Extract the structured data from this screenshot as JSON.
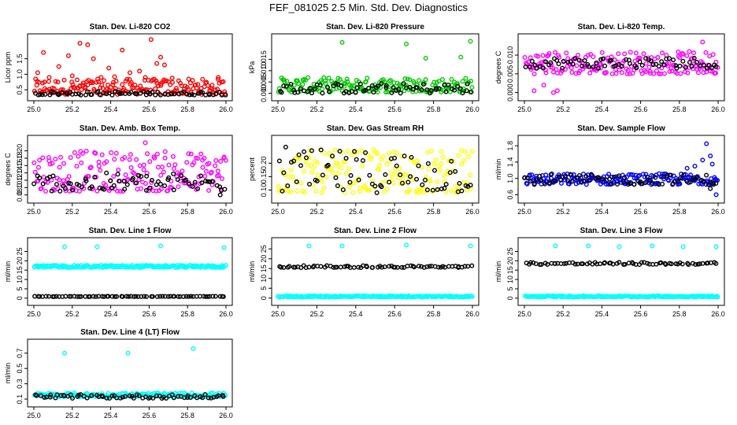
{
  "figure_title": "FEF_081025  2.5 Min. Std. Dev. Diagnostics",
  "colors": {
    "black": "#000000",
    "red": "#ff0000",
    "green": "#00cc00",
    "magenta": "#ff00ff",
    "yellow": "#ffff00",
    "blue": "#0000ff",
    "cyan": "#00ffff"
  },
  "chart_data": [
    {
      "type": "scatter",
      "title": "Stan. Dev. Li-820 CO2",
      "ylabel": "Licor ppm",
      "xlim": [
        25.0,
        26.0
      ],
      "xticks": [
        "25.0",
        "25.2",
        "25.4",
        "25.6",
        "25.8",
        "26.0"
      ],
      "ylim": [
        0.35,
        2.1
      ],
      "yticks": [
        "0.5",
        "1.0",
        "1.5"
      ],
      "series": [
        {
          "name": "red",
          "color": "#ff0000",
          "band": [
            0.35,
            0.85
          ],
          "spikes": [
            [
              25.02,
              1.05
            ],
            [
              25.05,
              1.7
            ],
            [
              25.08,
              0.9
            ],
            [
              25.13,
              1.25
            ],
            [
              25.18,
              1.6
            ],
            [
              25.2,
              0.95
            ],
            [
              25.24,
              2.0
            ],
            [
              25.28,
              1.95
            ],
            [
              25.31,
              1.5
            ],
            [
              25.35,
              0.9
            ],
            [
              25.39,
              1.2
            ],
            [
              25.42,
              0.92
            ],
            [
              25.46,
              1.78
            ],
            [
              25.5,
              1.05
            ],
            [
              25.55,
              1.1
            ],
            [
              25.58,
              0.9
            ],
            [
              25.61,
              2.12
            ],
            [
              25.64,
              1.35
            ],
            [
              25.66,
              1.55
            ],
            [
              25.68,
              1.3
            ],
            [
              25.72,
              0.88
            ],
            [
              25.96,
              0.9
            ]
          ]
        },
        {
          "name": "black",
          "color": "#000000",
          "band": [
            0.33,
            0.45
          ],
          "spikes": []
        }
      ]
    },
    {
      "type": "scatter",
      "title": "Stan. Dev. Li-820 Pressure",
      "ylabel": "kPa",
      "xlim": [
        25.0,
        26.0
      ],
      "xticks": [
        "25.0",
        "25.2",
        "25.4",
        "25.6",
        "25.8",
        "26.0"
      ],
      "ylim": [
        -0.0005,
        0.0235
      ],
      "yticks": [
        "0.000",
        "0.005",
        "0.010",
        "0.015"
      ],
      "series": [
        {
          "name": "green",
          "color": "#00cc00",
          "band": [
            0.0005,
            0.007
          ],
          "spikes": [
            [
              25.33,
              0.0225
            ],
            [
              25.66,
              0.0218
            ],
            [
              25.76,
              0.0155
            ],
            [
              25.94,
              0.016
            ],
            [
              25.99,
              0.023
            ]
          ]
        },
        {
          "name": "black",
          "color": "#000000",
          "band": [
            0.0,
            0.0045
          ],
          "spikes": []
        }
      ]
    },
    {
      "type": "scatter",
      "title": "Stan. Dev. Li-820 Temp.",
      "ylabel": "degrees C",
      "xlim": [
        25.0,
        26.0
      ],
      "xticks": [
        "25.0",
        "25.2",
        "25.4",
        "25.6",
        "25.8",
        "26.0"
      ],
      "ylim": [
        -0.0005,
        0.014
      ],
      "yticks": [
        "0.000",
        "0.005",
        "0.010"
      ],
      "series": [
        {
          "name": "magenta",
          "color": "#ff00ff",
          "band": [
            0.005,
            0.011
          ],
          "spikes": [
            [
              25.05,
              0.0005
            ],
            [
              25.1,
              0.002
            ],
            [
              25.15,
              0.0
            ],
            [
              25.17,
              0.0005
            ],
            [
              25.92,
              0.0135
            ]
          ]
        },
        {
          "name": "black",
          "color": "#000000",
          "band": [
            0.0065,
            0.0095
          ],
          "spikes": []
        }
      ]
    },
    {
      "type": "scatter",
      "title": "Stan. Dev. Amb. Box Temp.",
      "ylabel": "degrees C",
      "xlim": [
        25.0,
        26.0
      ],
      "xticks": [
        "25.0",
        "25.2",
        "25.4",
        "25.6",
        "25.8",
        "26.0"
      ],
      "ylim": [
        0.075,
        0.225
      ],
      "yticks": [
        "0.08",
        "0.10",
        "0.12",
        "0.14",
        "0.16",
        "0.18",
        "0.20"
      ],
      "series": [
        {
          "name": "magenta",
          "color": "#ff00ff",
          "band": [
            0.09,
            0.2
          ],
          "spikes": [
            [
              25.58,
              0.222
            ]
          ]
        },
        {
          "name": "black",
          "color": "#000000",
          "band": [
            0.09,
            0.14
          ],
          "spikes": [
            [
              25.97,
              0.08
            ]
          ]
        }
      ]
    },
    {
      "type": "scatter",
      "title": "Stan. Dev. Gas Stream RH",
      "ylabel": "percent",
      "xlim": [
        25.0,
        26.0
      ],
      "xticks": [
        "25.0",
        "25.2",
        "25.4",
        "25.6",
        "25.8",
        "26.0"
      ],
      "ylim": [
        0.075,
        0.28
      ],
      "yticks": [
        "0.10",
        "0.15",
        "0.20"
      ],
      "series": [
        {
          "name": "yellow",
          "color": "#ffff00",
          "band": [
            0.09,
            0.25
          ],
          "spikes": []
        },
        {
          "name": "black",
          "color": "#000000",
          "band": [
            0.09,
            0.25
          ],
          "spikes": [
            [
              25.04,
              0.26
            ]
          ]
        }
      ]
    },
    {
      "type": "scatter",
      "title": "Stan. Dev. Sample Flow",
      "ylabel": "ml/min",
      "xlim": [
        25.0,
        26.0
      ],
      "xticks": [
        "25.0",
        "25.2",
        "25.4",
        "25.6",
        "25.8",
        "26.0"
      ],
      "ylim": [
        0.55,
        1.9
      ],
      "yticks": [
        "0.6",
        "1.0",
        "1.4",
        "1.8"
      ],
      "series": [
        {
          "name": "blue",
          "color": "#0000ff",
          "band": [
            0.85,
            1.12
          ],
          "spikes": [
            [
              25.84,
              1.25
            ],
            [
              25.88,
              1.3
            ],
            [
              25.92,
              1.45
            ],
            [
              25.94,
              1.85
            ],
            [
              25.96,
              1.55
            ],
            [
              25.97,
              1.35
            ],
            [
              25.99,
              0.6
            ]
          ]
        },
        {
          "name": "black",
          "color": "#000000",
          "band": [
            0.85,
            1.1
          ],
          "spikes": [
            [
              25.96,
              0.75
            ]
          ]
        }
      ]
    },
    {
      "type": "scatter",
      "title": "Stan. Dev. Line 1 Flow",
      "ylabel": "ml/min",
      "xlim": [
        25.0,
        26.0
      ],
      "xticks": [
        "25.0",
        "25.2",
        "25.4",
        "25.6",
        "25.8",
        "26.0"
      ],
      "ylim": [
        -0.5,
        29
      ],
      "yticks": [
        "0",
        "5",
        "10",
        "15",
        "20",
        "25"
      ],
      "series": [
        {
          "name": "cyan",
          "color": "#00ffff",
          "band": [
            16.4,
            17.6
          ],
          "spikes": [
            [
              25.16,
              27.5
            ],
            [
              25.33,
              27.5
            ],
            [
              25.66,
              28.0
            ],
            [
              25.99,
              27.0
            ]
          ]
        },
        {
          "name": "black",
          "color": "#000000",
          "band": [
            0.8,
            1.0
          ],
          "spikes": []
        }
      ]
    },
    {
      "type": "scatter",
      "title": "Stan. Dev. Line 2 Flow",
      "ylabel": "ml/min",
      "xlim": [
        25.0,
        26.0
      ],
      "xticks": [
        "25.0",
        "25.2",
        "25.4",
        "25.6",
        "25.8",
        "26.0"
      ],
      "ylim": [
        -0.5,
        27.5
      ],
      "yticks": [
        "0",
        "5",
        "10",
        "15",
        "20",
        "25"
      ],
      "series": [
        {
          "name": "cyan",
          "color": "#00ffff",
          "band": [
            0.5,
            1.2
          ],
          "spikes": [
            [
              25.16,
              26.5
            ],
            [
              25.33,
              26.5
            ],
            [
              25.66,
              27.0
            ],
            [
              25.99,
              26.5
            ]
          ]
        },
        {
          "name": "black",
          "color": "#000000",
          "band": [
            15.5,
            16.5
          ],
          "spikes": []
        }
      ]
    },
    {
      "type": "scatter",
      "title": "Stan. Dev. Line 3 Flow",
      "ylabel": "ml/min",
      "xlim": [
        25.0,
        26.0
      ],
      "xticks": [
        "25.0",
        "25.2",
        "25.4",
        "25.6",
        "25.8",
        "26.0"
      ],
      "ylim": [
        -0.5,
        29
      ],
      "yticks": [
        "0",
        "5",
        "10",
        "15",
        "20",
        "25"
      ],
      "series": [
        {
          "name": "cyan",
          "color": "#00ffff",
          "band": [
            0.6,
            1.3
          ],
          "spikes": [
            [
              25.16,
              28.0
            ],
            [
              25.33,
              28.0
            ],
            [
              25.49,
              27.5
            ],
            [
              25.66,
              28.0
            ],
            [
              25.82,
              27.5
            ],
            [
              25.99,
              27.5
            ]
          ]
        },
        {
          "name": "black",
          "color": "#000000",
          "band": [
            18.0,
            19.2
          ],
          "spikes": []
        }
      ]
    },
    {
      "type": "scatter",
      "title": "Stan. Dev. Line 4 (LT) Flow",
      "ylabel": "ml/min",
      "xlim": [
        25.0,
        26.0
      ],
      "xticks": [
        "25.0",
        "25.2",
        "25.4",
        "25.6",
        "25.8",
        "26.0"
      ],
      "ylim": [
        0.08,
        0.8
      ],
      "yticks": [
        "0.1",
        "0.3",
        "0.5",
        "0.7"
      ],
      "series": [
        {
          "name": "cyan",
          "color": "#00ffff",
          "band": [
            0.13,
            0.18
          ],
          "spikes": [
            [
              25.16,
              0.7
            ],
            [
              25.49,
              0.7
            ],
            [
              25.83,
              0.76
            ]
          ]
        },
        {
          "name": "black",
          "color": "#000000",
          "band": [
            0.11,
            0.16
          ],
          "spikes": []
        }
      ]
    }
  ]
}
